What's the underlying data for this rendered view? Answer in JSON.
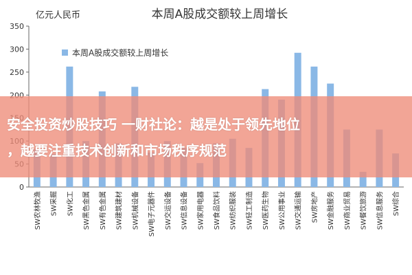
{
  "chart_data": {
    "type": "bar",
    "title": "本周A股成交额较上周增长",
    "unit_label": "亿元人民币",
    "legend": "本周A股成交额较上周增长",
    "legend_position": "top-left",
    "ylim": [
      0,
      350
    ],
    "yticks": [
      0,
      50,
      100,
      150,
      200,
      250,
      300,
      350
    ],
    "grid": false,
    "bar_color": "#8ab8e6",
    "categories": [
      "SW农林牧渔",
      "SW采掘",
      "SW化工",
      "SW黑色金属",
      "SW有色金属",
      "SW建筑建材",
      "SW机械设备",
      "SW电子元器件",
      "SW交运设备",
      "SW信息设备",
      "SW家用电器",
      "SW食品饮料",
      "SW纺织服装",
      "SW轻工制造",
      "SW医药生物",
      "SW公用事业",
      "SW交通运输",
      "SW房地产",
      "SW金融服务",
      "SW商业贸易",
      "SW餐饮旅游",
      "SW信息服务",
      "SW综合"
    ],
    "values": [
      82,
      72,
      262,
      100,
      208,
      95,
      218,
      75,
      100,
      85,
      52,
      95,
      105,
      85,
      213,
      190,
      292,
      262,
      225,
      125,
      33,
      125,
      73
    ]
  },
  "overlay": {
    "line1": "安全投资炒股技巧 一财社论：越是处于领先地位",
    "line2": "，越要注重技术创新和市场秩序规范"
  }
}
